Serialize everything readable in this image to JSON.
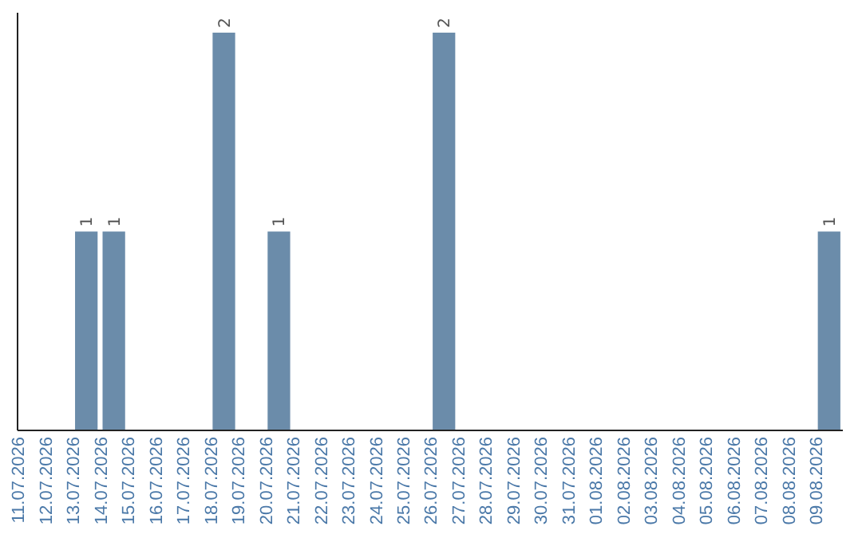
{
  "chart_data": {
    "type": "bar",
    "categories": [
      "11.07.2026",
      "12.07.2026",
      "13.07.2026",
      "14.07.2026",
      "15.07.2026",
      "16.07.2026",
      "17.07.2026",
      "18.07.2026",
      "19.07.2026",
      "20.07.2026",
      "21.07.2026",
      "22.07.2026",
      "23.07.2026",
      "24.07.2026",
      "25.07.2026",
      "26.07.2026",
      "27.07.2026",
      "28.07.2026",
      "29.07.2026",
      "30.07.2026",
      "31.07.2026",
      "01.08.2026",
      "02.08.2026",
      "03.08.2026",
      "04.08.2026",
      "05.08.2026",
      "06.08.2026",
      "07.08.2026",
      "08.08.2026",
      "09.08.2026"
    ],
    "values": [
      0,
      0,
      1,
      1,
      0,
      0,
      0,
      2,
      0,
      1,
      0,
      0,
      0,
      0,
      0,
      2,
      0,
      0,
      0,
      0,
      0,
      0,
      0,
      0,
      0,
      0,
      0,
      0,
      0,
      1
    ],
    "value_labels": [
      null,
      null,
      "1",
      "1",
      null,
      null,
      null,
      "2",
      null,
      "1",
      null,
      null,
      null,
      null,
      null,
      "2",
      null,
      null,
      null,
      null,
      null,
      null,
      null,
      null,
      null,
      null,
      null,
      null,
      null,
      "1"
    ],
    "color": "#6b8caa",
    "ylim": [
      0,
      2.1
    ],
    "tick_labels": "x"
  }
}
